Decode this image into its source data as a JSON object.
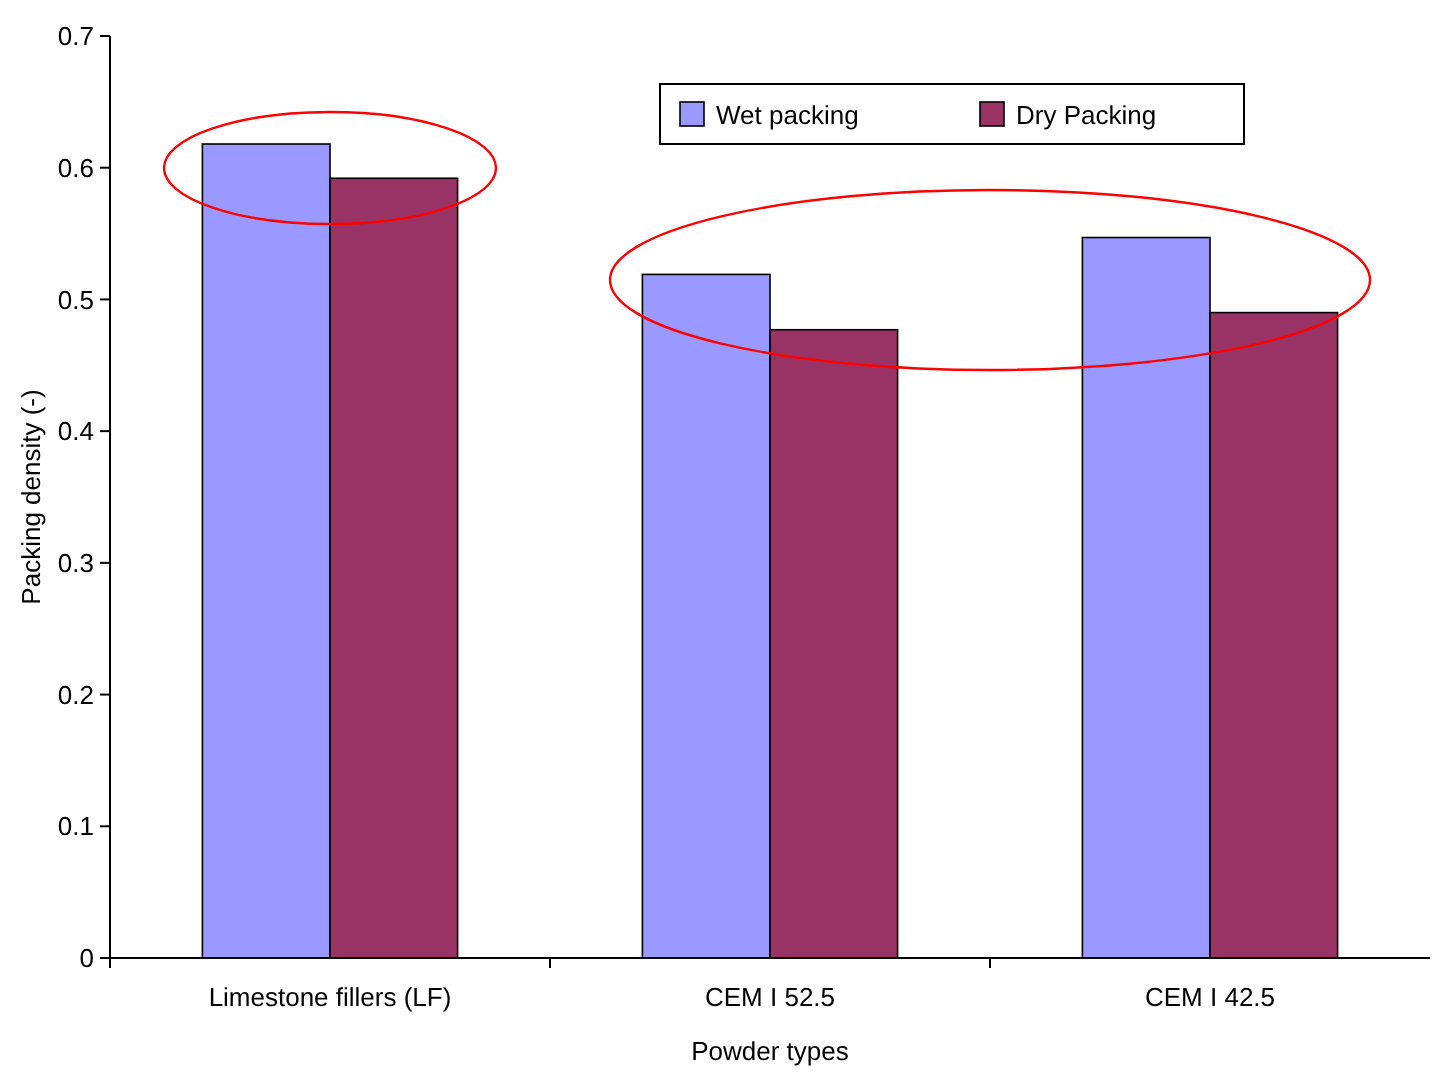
{
  "chart_data": {
    "type": "bar",
    "xlabel": "Powder types",
    "ylabel": "Packing density (-)",
    "categories": [
      "Limestone fillers (LF)",
      "CEM I 52.5",
      "CEM I 42.5"
    ],
    "series": [
      {
        "name": "Wet packing",
        "color": "#9999ff",
        "values": [
          0.618,
          0.519,
          0.547
        ]
      },
      {
        "name": "Dry Packing",
        "color": "#993366",
        "values": [
          0.592,
          0.477,
          0.49
        ]
      }
    ],
    "ylim": [
      0,
      0.7
    ],
    "yticks": [
      {
        "value": 0,
        "label": "0"
      },
      {
        "value": 0.1,
        "label": "0.1"
      },
      {
        "value": 0.2,
        "label": "0.2"
      },
      {
        "value": 0.3,
        "label": "0.3"
      },
      {
        "value": 0.4,
        "label": "0.4"
      },
      {
        "value": 0.5,
        "label": "0.5"
      },
      {
        "value": 0.6,
        "label": "0.6"
      },
      {
        "value": 0.7,
        "label": "0.7"
      }
    ],
    "grid": false,
    "legend": "top right"
  }
}
